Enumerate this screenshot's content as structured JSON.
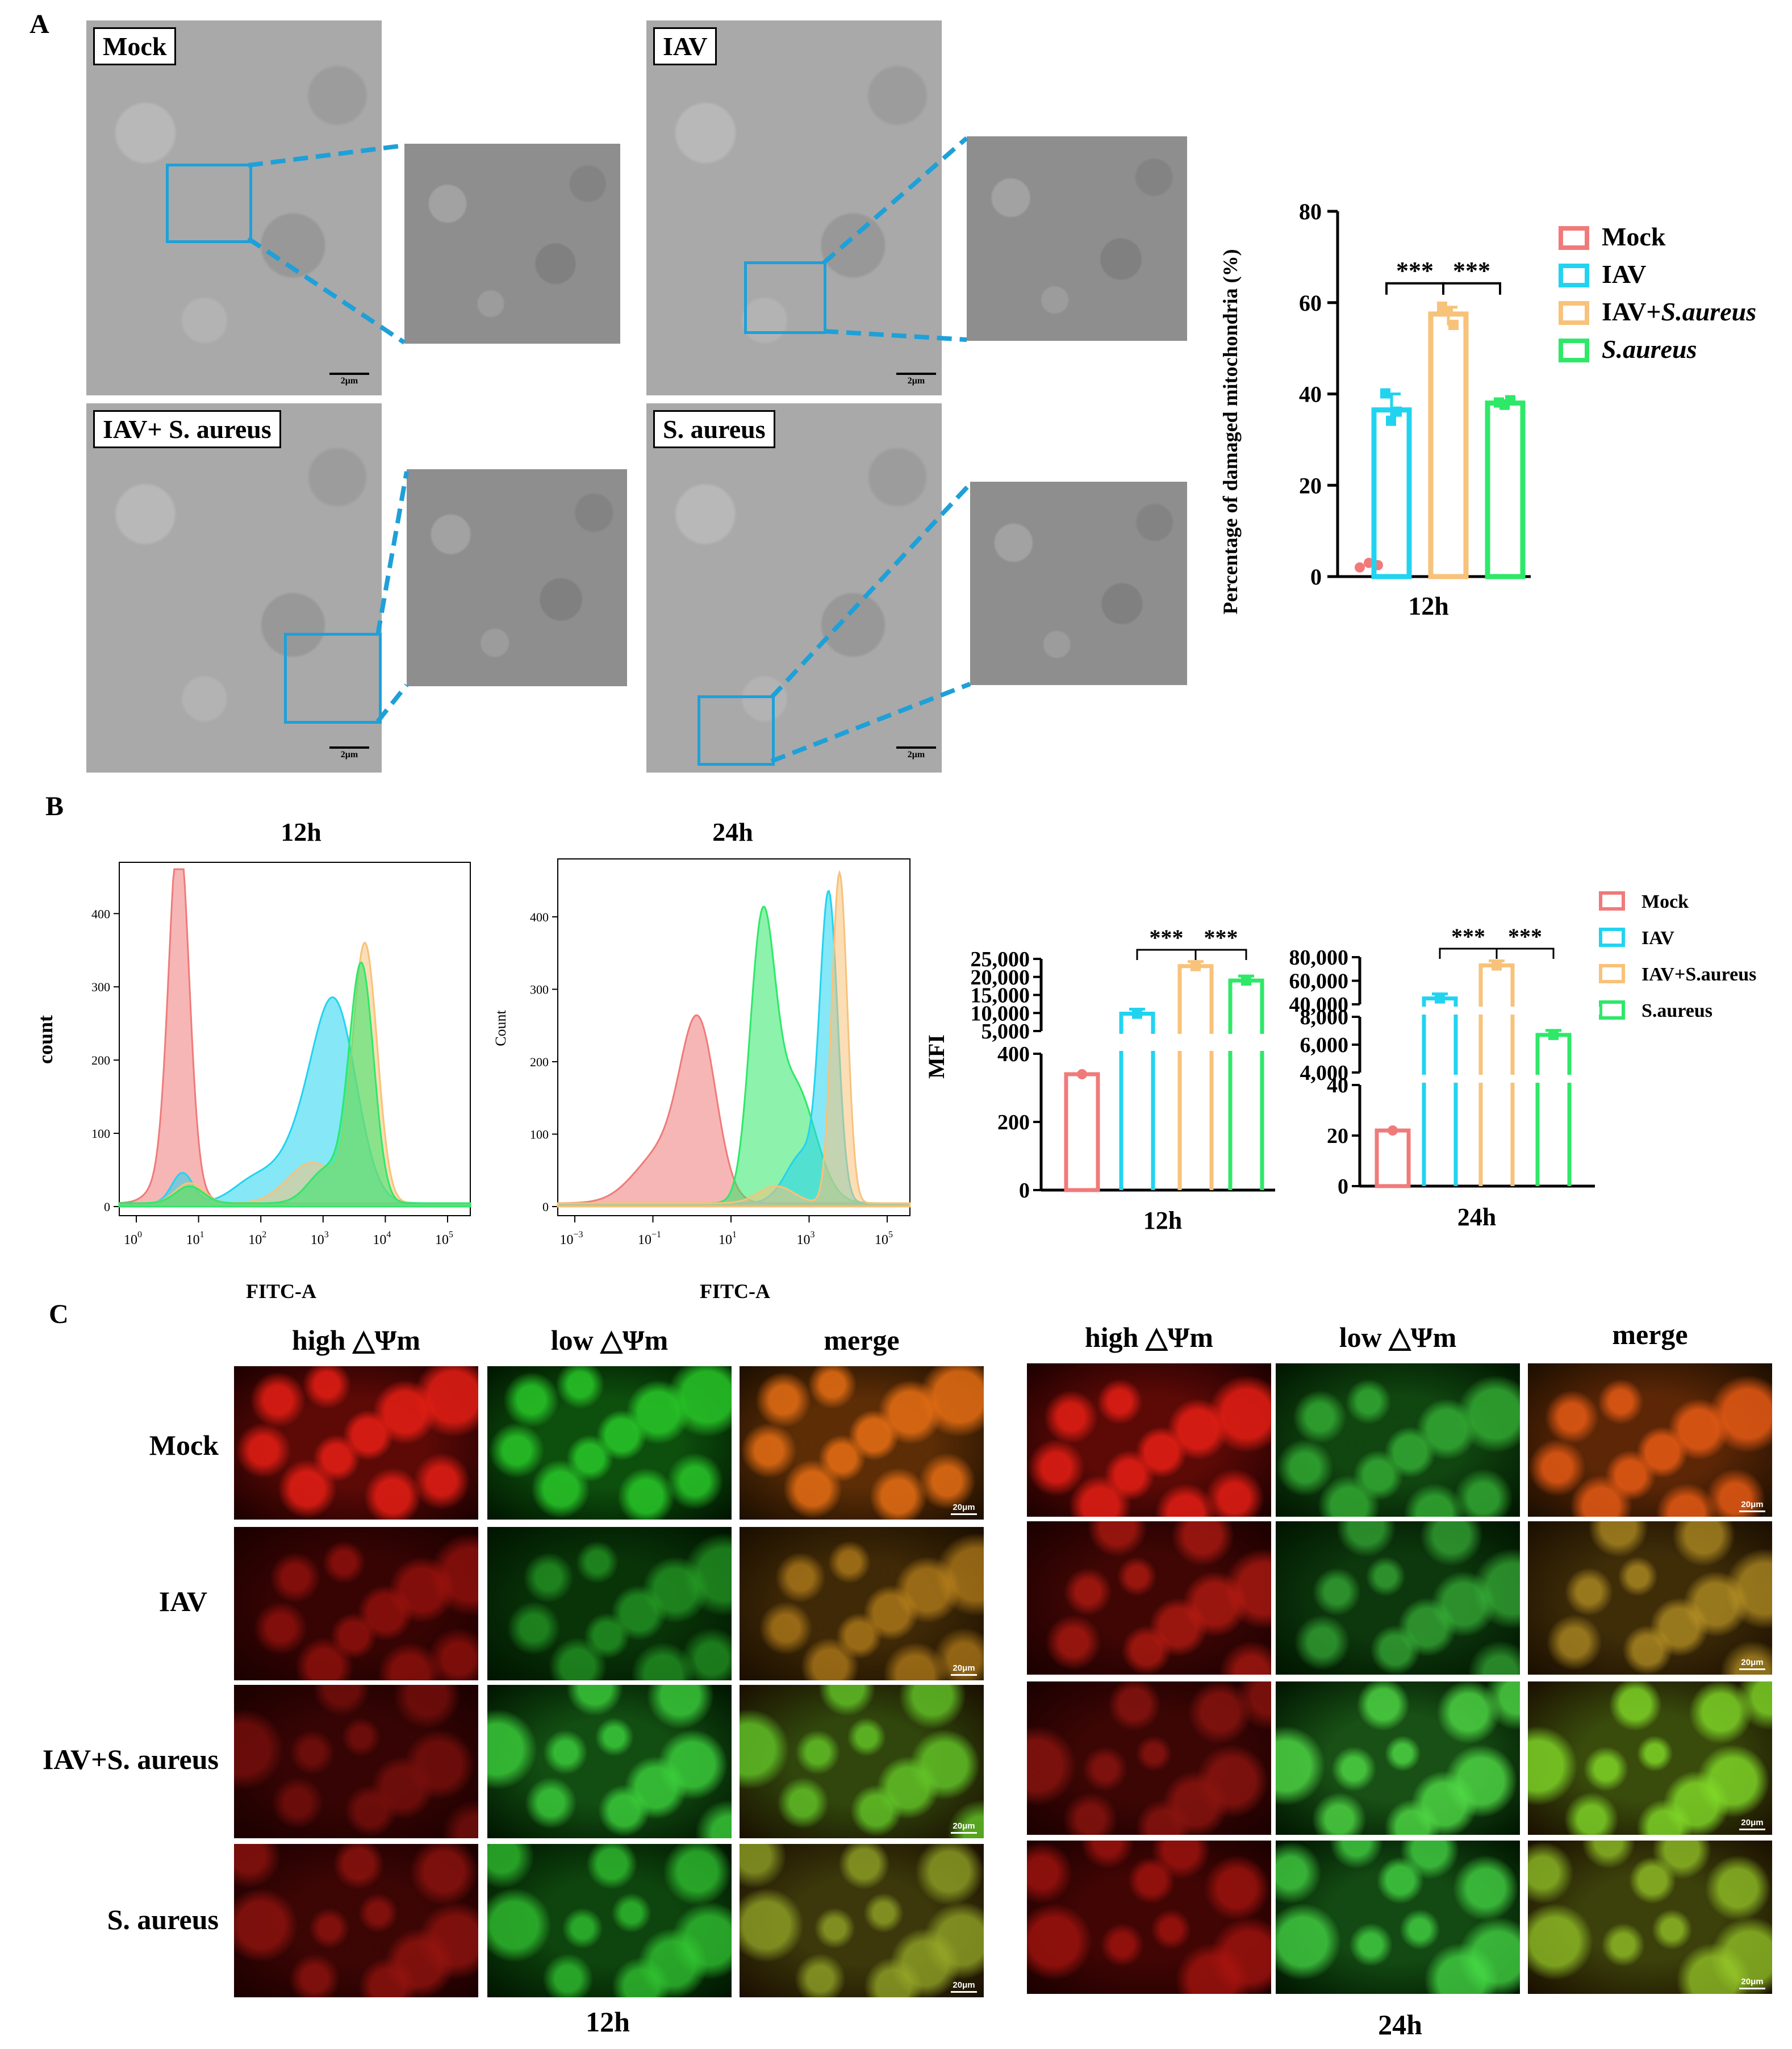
{
  "panels": {
    "A": "A",
    "B": "B",
    "C": "C"
  },
  "panelA": {
    "images": [
      {
        "label": "Mock",
        "scale": "2μm"
      },
      {
        "label": "IAV",
        "scale": "2μm"
      },
      {
        "label": "IAV+ S. aureus",
        "scale": "2μm"
      },
      {
        "label": "S. aureus",
        "scale": "2μm"
      }
    ],
    "chart_data": {
      "type": "bar",
      "categories": [
        "12h"
      ],
      "series": [
        {
          "name": "Mock",
          "values": [
            2.5
          ],
          "points": [
            2,
            3,
            2.5
          ],
          "color": "#f07a7a"
        },
        {
          "name": "IAV",
          "values": [
            36.5
          ],
          "points": [
            40,
            34,
            36
          ],
          "color": "#22d3f0"
        },
        {
          "name": "IAV+S.aureus",
          "values": [
            57.5
          ],
          "points": [
            59,
            58,
            55
          ],
          "color": "#f7c27a"
        },
        {
          "name": "S.aureus",
          "values": [
            38
          ],
          "points": [
            38,
            37.5,
            38.5
          ],
          "color": "#2ee868"
        }
      ],
      "legend": [
        {
          "name": "Mock",
          "color": "#f07a7a"
        },
        {
          "name": "IAV",
          "color": "#22d3f0"
        },
        {
          "name": "IAV+",
          "name_italic": "S.aureus",
          "color": "#f7c27a"
        },
        {
          "name_italic": "S.aureus",
          "color": "#2ee868"
        }
      ],
      "ylabel": "Percentage of damaged mitochondria (%)",
      "ylim": [
        0,
        80
      ],
      "yticks": [
        "0",
        "20",
        "40",
        "60",
        "80"
      ],
      "significance": [
        "***",
        "***"
      ],
      "legend_position": "right"
    }
  },
  "panelB": {
    "histograms": [
      {
        "title": "12h",
        "ylabel": "count",
        "xlabel": "FITC-A",
        "yticks": [
          "0",
          "100",
          "200",
          "300",
          "400"
        ],
        "ylim": [
          0,
          470
        ],
        "xticks": [
          {
            "base": "10",
            "exp": "0"
          },
          {
            "base": "10",
            "exp": "1"
          },
          {
            "base": "10",
            "exp": "2"
          },
          {
            "base": "10",
            "exp": "3"
          },
          {
            "base": "10",
            "exp": "4"
          },
          {
            "base": "10",
            "exp": "5"
          }
        ]
      },
      {
        "title": "24h",
        "ylabel": "Count",
        "xlabel": "FITC-A",
        "yticks": [
          "0",
          "100",
          "200",
          "300",
          "400"
        ],
        "ylim": [
          0,
          480
        ],
        "xticks": [
          {
            "base": "10",
            "exp": "−3"
          },
          {
            "base": "10",
            "exp": "−1"
          },
          {
            "base": "10",
            "exp": "1"
          },
          {
            "base": "10",
            "exp": "3"
          },
          {
            "base": "10",
            "exp": "5"
          }
        ]
      }
    ],
    "mfi_ylabel": "MFI",
    "chart_data": [
      {
        "type": "bar",
        "categories": [
          "12h"
        ],
        "series": [
          {
            "name": "Mock",
            "values": [
              340
            ]
          },
          {
            "name": "IAV",
            "values": [
              9800
            ]
          },
          {
            "name": "IAV+S.aureus",
            "values": [
              23000
            ]
          },
          {
            "name": "S.aureus",
            "values": [
              19000
            ]
          }
        ],
        "yticks_top": [
          "5,000",
          "10,000",
          "15,000",
          "20,000",
          "25,000"
        ],
        "yticks_bottom": [
          "0",
          "200",
          "400"
        ],
        "significance": [
          "***",
          "***"
        ]
      },
      {
        "type": "bar",
        "categories": [
          "24h"
        ],
        "series": [
          {
            "name": "Mock",
            "values": [
              22
            ]
          },
          {
            "name": "IAV",
            "values": [
              45000
            ]
          },
          {
            "name": "IAV+S.aureus",
            "values": [
              73000
            ]
          },
          {
            "name": "S.aureus",
            "values": [
              6700
            ]
          }
        ],
        "yticks_top": [
          "40,000",
          "60,000",
          "80,000"
        ],
        "yticks_mid": [
          "4,000",
          "6,000",
          "8,000"
        ],
        "yticks_bottom": [
          "0",
          "20",
          "40"
        ],
        "significance": [
          "***",
          "***"
        ]
      }
    ],
    "legend": [
      {
        "name": "Mock",
        "color": "#f07a7a"
      },
      {
        "name": "IAV",
        "color": "#22d3f0"
      },
      {
        "name": "IAV+S.aureus",
        "color": "#f7c27a"
      },
      {
        "name": "S.aureus",
        "color": "#2ee868"
      }
    ]
  },
  "panelC": {
    "columns": [
      "high △Ψm",
      "low △Ψm",
      "merge"
    ],
    "rows": [
      "Mock",
      "IAV",
      "IAV+S. aureus",
      "S. aureus"
    ],
    "times": [
      "12h",
      "24h"
    ],
    "scale": "20μm"
  }
}
